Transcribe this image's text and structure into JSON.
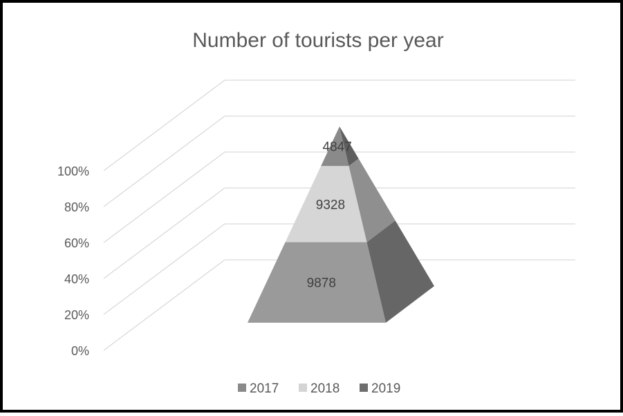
{
  "chart_data": {
    "type": "pyramid",
    "title": "Number of tourists per year",
    "yaxis_ticks": [
      "0%",
      "20%",
      "40%",
      "60%",
      "80%",
      "100%"
    ],
    "stacked_percent": true,
    "series": [
      {
        "name": "2017",
        "value": 9878,
        "color": "#9a9a9a"
      },
      {
        "name": "2018",
        "value": 9328,
        "color": "#d4d4d4"
      },
      {
        "name": "2019",
        "value": 4847,
        "color": "#7a7a7a"
      }
    ],
    "legend": {
      "position": "bottom",
      "items": [
        "2017",
        "2018",
        "2019"
      ]
    },
    "grid": true
  }
}
